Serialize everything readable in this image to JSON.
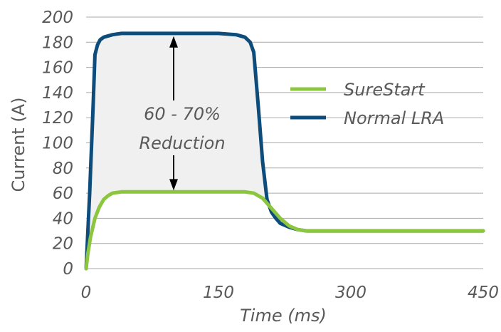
{
  "chart_data": {
    "type": "line",
    "title": "",
    "xlabel": "Time (ms)",
    "ylabel": "Current (A)",
    "xlim": [
      0,
      450
    ],
    "ylim": [
      0,
      200
    ],
    "xticks": [
      0,
      150,
      300,
      450
    ],
    "yticks": [
      0,
      20,
      40,
      60,
      80,
      100,
      120,
      140,
      160,
      180,
      200
    ],
    "grid": "horizontal",
    "legend_position": "right",
    "annotation": [
      "60 - 70%",
      "Reduction"
    ],
    "colors": {
      "SureStart": "#8cc63f",
      "Normal LRA": "#0e4c7c",
      "fill": "#f0f0f0",
      "grid": "#aaaaaa",
      "text": "#595959"
    },
    "series": [
      {
        "name": "SureStart",
        "x": [
          0,
          2,
          5,
          10,
          15,
          20,
          25,
          30,
          40,
          60,
          100,
          150,
          180,
          190,
          200,
          210,
          220,
          230,
          240,
          250,
          300,
          350,
          400,
          450
        ],
        "y": [
          0,
          12,
          25,
          40,
          49,
          55,
          58,
          60,
          61,
          61,
          61,
          61,
          61,
          60,
          56,
          48,
          40,
          34,
          31,
          30,
          30,
          30,
          30,
          30
        ]
      },
      {
        "name": "Normal LRA",
        "x": [
          0,
          4,
          8,
          10,
          13,
          16,
          20,
          30,
          40,
          60,
          100,
          150,
          170,
          180,
          186,
          190,
          195,
          200,
          205,
          210,
          215,
          220,
          230,
          240,
          250,
          300,
          350,
          400,
          450
        ],
        "y": [
          0,
          60,
          130,
          170,
          178,
          182,
          184,
          186,
          187,
          187,
          187,
          187,
          186,
          184,
          180,
          172,
          130,
          85,
          55,
          45,
          40,
          36,
          33,
          31,
          30,
          30,
          30,
          30,
          30
        ]
      }
    ]
  }
}
